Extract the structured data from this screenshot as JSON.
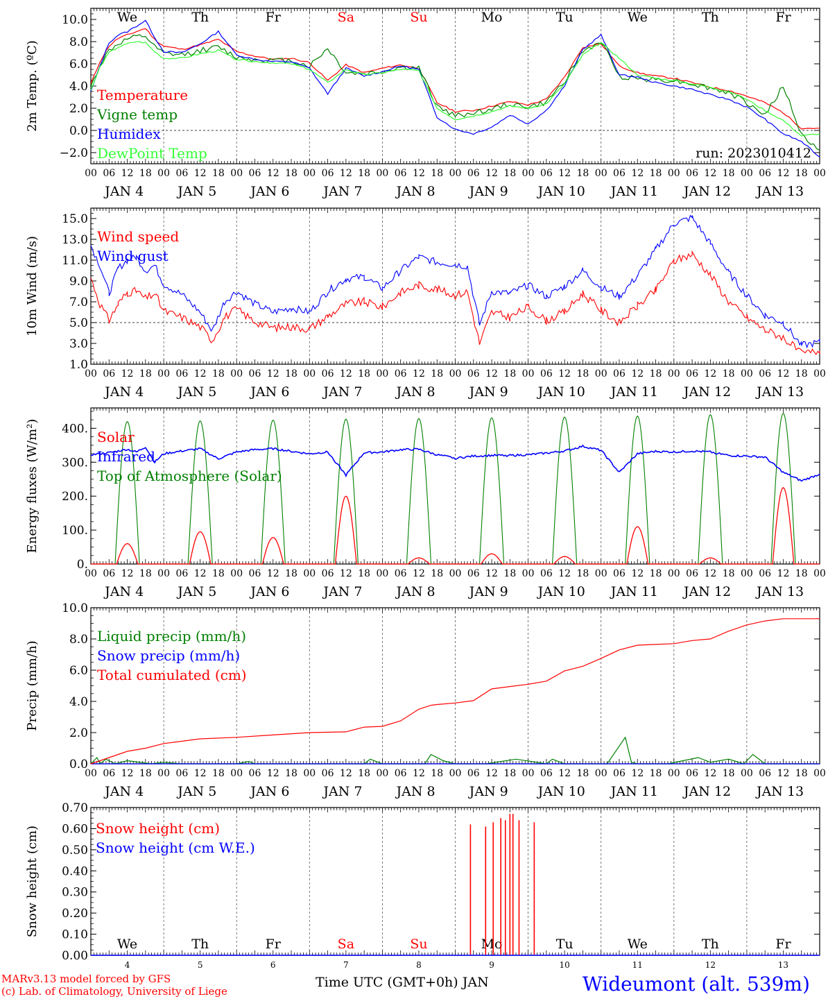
{
  "days": [
    "We",
    "Th",
    "Fr",
    "Sa",
    "Su",
    "Mo",
    "Tu",
    "We",
    "Th",
    "Fr"
  ],
  "weekend_days": [
    "Sa",
    "Su"
  ],
  "day_labels": [
    "JAN  4",
    "JAN  5",
    "JAN  6",
    "JAN  7",
    "JAN  8",
    "JAN  9",
    "JAN 10",
    "JAN 11",
    "JAN 12",
    "JAN 13"
  ],
  "hour_labels": [
    "00",
    "06",
    "12",
    "18"
  ],
  "end_hour_label": "00",
  "bottom_day_numbers": [
    "4",
    "5",
    "6",
    "7",
    "8",
    "9",
    "10",
    "11",
    "12",
    "13"
  ],
  "colors": {
    "red": "#ff0000",
    "green": "#008000",
    "blue": "#0000ff",
    "lightgreen": "#33ff33",
    "frame": "#000000",
    "grid": "#555555"
  },
  "footer": {
    "model_line1": "MARv3.13 model forced by GFS",
    "model_line2": "(c) Lab. of Climatology, University of Liege",
    "xlabel": "Time UTC (GMT+0h) JAN",
    "station": "Wideumont (alt. 539m)"
  },
  "chart_data": [
    {
      "type": "line",
      "ylabel": "2m Temp. (ºC)",
      "ylim": [
        -3,
        11
      ],
      "yticks": [
        -2,
        0,
        2,
        4,
        6,
        8,
        10
      ],
      "ytick_labels": [
        "−2.0",
        "0.0",
        "2.0",
        "4.0",
        "6.0",
        "8.0",
        "10.0"
      ],
      "reference_line": 0,
      "x_unit": "hours since JAN 4 00 UTC",
      "annotation": "run: 2023010412",
      "series": [
        {
          "name": "Temperature",
          "color": "red",
          "x": [
            0,
            3,
            6,
            9,
            12,
            15,
            18,
            21,
            24,
            30,
            36,
            42,
            48,
            54,
            60,
            66,
            72,
            78,
            84,
            90,
            96,
            102,
            108,
            114,
            120,
            126,
            132,
            138,
            144,
            150,
            156,
            162,
            168,
            174,
            180,
            186,
            192,
            198,
            204,
            210,
            216,
            222,
            228,
            234,
            240
          ],
          "y": [
            4.2,
            6.2,
            7.6,
            8.3,
            8.6,
            8.9,
            9.2,
            8.2,
            7.6,
            7.3,
            7.7,
            8.2,
            7.1,
            6.7,
            6.4,
            6.5,
            6.1,
            4.5,
            5.9,
            5.2,
            5.6,
            5.9,
            5.6,
            2.5,
            1.7,
            1.8,
            2.2,
            2.6,
            2.3,
            2.8,
            4.8,
            7.5,
            7.8,
            5.8,
            5.2,
            4.9,
            4.7,
            4.3,
            3.9,
            3.6,
            3.1,
            2.5,
            1.6,
            0.2,
            0.2
          ]
        },
        {
          "name": "Vigne temp",
          "color": "green",
          "x": [
            0,
            3,
            6,
            9,
            12,
            15,
            18,
            21,
            24,
            30,
            36,
            42,
            48,
            54,
            60,
            66,
            72,
            78,
            84,
            90,
            96,
            102,
            108,
            114,
            120,
            126,
            132,
            138,
            144,
            150,
            156,
            162,
            168,
            174,
            180,
            186,
            192,
            198,
            204,
            210,
            216,
            222,
            228,
            234,
            240
          ],
          "y": [
            3.9,
            5.9,
            7.2,
            7.8,
            8.2,
            8.4,
            8.5,
            7.5,
            6.9,
            6.8,
            7.2,
            7.5,
            6.6,
            6.4,
            6.3,
            6.3,
            5.8,
            7.4,
            5.2,
            5.1,
            5.3,
            5.7,
            5.6,
            2.2,
            1.3,
            1.6,
            1.9,
            2.4,
            2.1,
            2.5,
            4.5,
            7.1,
            8.0,
            4.9,
            4.7,
            4.6,
            4.5,
            4.2,
            3.8,
            3.4,
            2.5,
            1.4,
            4.0,
            -0.4,
            -1.8
          ]
        },
        {
          "name": "Humidex",
          "color": "blue",
          "x": [
            0,
            3,
            6,
            9,
            12,
            15,
            18,
            21,
            24,
            30,
            36,
            42,
            48,
            54,
            60,
            66,
            72,
            78,
            84,
            90,
            96,
            102,
            108,
            114,
            120,
            126,
            132,
            138,
            144,
            150,
            156,
            162,
            168,
            174,
            180,
            186,
            192,
            198,
            204,
            210,
            216,
            222,
            228,
            234,
            240
          ],
          "y": [
            3.5,
            5.8,
            7.9,
            8.6,
            8.9,
            9.4,
            9.9,
            8.4,
            7.1,
            7.0,
            7.8,
            8.9,
            6.8,
            6.4,
            6.2,
            6.2,
            5.6,
            3.3,
            5.6,
            4.9,
            5.3,
            5.8,
            5.5,
            1.2,
            0.1,
            -0.3,
            0.3,
            1.4,
            0.6,
            1.8,
            4.0,
            7.3,
            8.6,
            5.0,
            4.8,
            4.3,
            4.0,
            3.7,
            3.2,
            2.8,
            2.1,
            1.0,
            -0.3,
            -1.0,
            -2.4
          ]
        },
        {
          "name": "DewPoint Temp",
          "color": "lightgreen",
          "x": [
            0,
            3,
            6,
            9,
            12,
            15,
            18,
            21,
            24,
            30,
            36,
            42,
            48,
            54,
            60,
            66,
            72,
            78,
            84,
            90,
            96,
            102,
            108,
            114,
            120,
            126,
            132,
            138,
            144,
            150,
            156,
            162,
            168,
            174,
            180,
            186,
            192,
            198,
            204,
            210,
            216,
            222,
            228,
            234,
            240
          ],
          "y": [
            3.6,
            5.7,
            7.0,
            7.5,
            7.8,
            8.0,
            7.9,
            7.1,
            6.5,
            6.5,
            6.9,
            7.2,
            6.4,
            6.2,
            6.1,
            6.0,
            5.5,
            4.3,
            5.5,
            5.0,
            5.2,
            5.5,
            5.4,
            2.0,
            1.0,
            1.3,
            1.7,
            2.2,
            2.0,
            2.4,
            4.2,
            6.8,
            7.9,
            6.5,
            5.0,
            4.7,
            4.5,
            4.2,
            3.9,
            3.5,
            2.8,
            1.8,
            0.9,
            -0.5,
            -0.3
          ]
        }
      ]
    },
    {
      "type": "line",
      "ylabel": "10m Wind (m/s)",
      "ylim": [
        1,
        16
      ],
      "yticks": [
        1,
        3,
        5,
        7,
        9,
        11,
        13,
        15
      ],
      "ytick_labels": [
        "1.0",
        "3.0",
        "5.0",
        "7.0",
        "9.0",
        "11.0",
        "13.0",
        "15.0"
      ],
      "reference_line": 5,
      "x_unit": "hours since JAN 4 00 UTC",
      "series": [
        {
          "name": "Wind speed",
          "color": "red",
          "x": [
            0,
            3,
            6,
            9,
            12,
            15,
            18,
            21,
            24,
            30,
            36,
            40,
            44,
            48,
            54,
            60,
            66,
            72,
            78,
            84,
            90,
            96,
            102,
            108,
            114,
            120,
            124,
            128,
            132,
            138,
            144,
            150,
            156,
            162,
            168,
            174,
            180,
            186,
            192,
            198,
            204,
            210,
            216,
            222,
            228,
            234,
            240
          ],
          "y": [
            9.3,
            6.8,
            5.2,
            6.8,
            7.9,
            8.0,
            7.3,
            7.8,
            6.1,
            5.5,
            4.6,
            3.3,
            5.5,
            6.3,
            5.1,
            4.5,
            4.6,
            4.4,
            5.6,
            6.8,
            7.0,
            6.5,
            7.9,
            8.6,
            8.2,
            7.6,
            8.0,
            3.0,
            6.0,
            5.5,
            6.5,
            5.2,
            6.0,
            7.8,
            6.2,
            5.0,
            6.6,
            8.1,
            10.9,
            11.6,
            9.6,
            7.0,
            5.5,
            4.3,
            3.6,
            2.0,
            2.3
          ]
        },
        {
          "name": "Wind gust",
          "color": "blue",
          "x": [
            0,
            3,
            6,
            9,
            12,
            15,
            18,
            21,
            24,
            30,
            36,
            40,
            44,
            48,
            54,
            60,
            66,
            72,
            78,
            84,
            90,
            96,
            102,
            108,
            114,
            120,
            124,
            128,
            132,
            138,
            144,
            150,
            156,
            162,
            168,
            174,
            180,
            186,
            192,
            198,
            204,
            210,
            216,
            222,
            228,
            234,
            240
          ],
          "y": [
            12.4,
            10.5,
            7.8,
            10.2,
            11.0,
            11.3,
            10.0,
            10.5,
            8.7,
            7.7,
            6.0,
            4.2,
            7.0,
            8.0,
            6.8,
            6.0,
            6.4,
            6.0,
            8.0,
            9.2,
            9.4,
            8.3,
            10.0,
            11.3,
            10.8,
            10.6,
            10.4,
            4.8,
            8.0,
            7.8,
            8.6,
            7.5,
            8.5,
            10.0,
            8.4,
            7.5,
            9.5,
            12.0,
            14.5,
            15.1,
            12.6,
            9.8,
            7.6,
            5.7,
            5.0,
            2.8,
            3.1
          ]
        }
      ]
    },
    {
      "type": "line",
      "ylabel": "Energy fluxes (W/m²)",
      "ylim": [
        0,
        460
      ],
      "yticks": [
        0,
        100,
        200,
        300,
        400
      ],
      "ytick_labels": [
        "0.",
        "100.",
        "200.",
        "300.",
        "400."
      ],
      "x_unit": "hours since JAN 4 00 UTC",
      "series": [
        {
          "name": "Solar",
          "color": "red",
          "daily_peaks": [
            60,
            95,
            78,
            200,
            18,
            30,
            22,
            110,
            18,
            225
          ],
          "peak_hour": 12,
          "half_width_hours": 3.5
        },
        {
          "name": "Infrared",
          "color": "blue",
          "x": [
            0,
            6,
            12,
            15,
            18,
            21,
            24,
            30,
            36,
            42,
            48,
            54,
            60,
            66,
            72,
            78,
            84,
            90,
            96,
            102,
            108,
            114,
            120,
            126,
            132,
            138,
            144,
            150,
            156,
            162,
            168,
            174,
            180,
            186,
            192,
            198,
            204,
            210,
            216,
            222,
            228,
            234,
            240
          ],
          "y": [
            322,
            328,
            338,
            330,
            345,
            300,
            325,
            333,
            340,
            310,
            330,
            337,
            340,
            332,
            325,
            330,
            262,
            328,
            330,
            337,
            338,
            322,
            312,
            318,
            320,
            320,
            322,
            327,
            333,
            347,
            335,
            270,
            325,
            332,
            330,
            333,
            330,
            320,
            318,
            315,
            270,
            245,
            265
          ]
        },
        {
          "name": "Top of Atmosphere (Solar)",
          "color": "green",
          "daily_peaks": [
            420,
            422,
            424,
            427,
            429,
            431,
            433,
            436,
            440,
            444
          ],
          "peak_hour": 12,
          "half_width_hours": 4.0
        }
      ]
    },
    {
      "type": "line",
      "ylabel": "Precip (mm/h)",
      "ylim": [
        0,
        10
      ],
      "yticks": [
        0,
        2,
        4,
        6,
        8,
        10
      ],
      "ytick_labels": [
        "0.0",
        "2.0",
        "4.0",
        "6.0",
        "8.0",
        "10.0"
      ],
      "x_unit": "hours since JAN 4 00 UTC",
      "series": [
        {
          "name": "Liquid precip (mm/h)",
          "color": "green",
          "x": [
            0,
            2,
            3,
            5,
            8,
            12,
            20,
            24,
            30,
            48,
            52,
            54,
            72,
            90,
            92,
            96,
            110,
            112,
            116,
            120,
            130,
            140,
            150,
            152,
            156,
            160,
            170,
            176,
            178,
            180,
            190,
            200,
            204,
            210,
            215,
            218,
            222,
            240
          ],
          "y": [
            0.0,
            0.4,
            0.0,
            0.3,
            0.0,
            0.2,
            0.0,
            0.1,
            0.0,
            0.0,
            0.15,
            0.0,
            0.0,
            0.0,
            0.3,
            0.0,
            0.0,
            0.6,
            0.2,
            0.0,
            0.0,
            0.3,
            0.0,
            0.3,
            0.0,
            0.0,
            0.0,
            1.7,
            0.1,
            0.0,
            0.0,
            0.4,
            0.1,
            0.3,
            0.0,
            0.6,
            0.0,
            0.0
          ]
        },
        {
          "name": "Snow precip (mm/h)",
          "color": "blue",
          "x": [
            0,
            240
          ],
          "y": [
            0,
            0
          ]
        },
        {
          "name": "Total cumulated (cm)",
          "color": "red",
          "x": [
            0,
            6,
            12,
            18,
            24,
            36,
            48,
            60,
            72,
            84,
            90,
            96,
            102,
            108,
            112,
            114,
            120,
            126,
            132,
            138,
            144,
            150,
            156,
            162,
            168,
            174,
            180,
            186,
            192,
            198,
            204,
            210,
            216,
            222,
            228,
            240
          ],
          "y": [
            0.0,
            0.4,
            0.8,
            1.0,
            1.3,
            1.6,
            1.7,
            1.85,
            2.0,
            2.05,
            2.35,
            2.4,
            2.75,
            3.5,
            3.75,
            3.8,
            3.9,
            4.05,
            4.8,
            4.95,
            5.1,
            5.3,
            5.95,
            6.25,
            6.75,
            7.3,
            7.6,
            7.65,
            7.7,
            7.9,
            8.0,
            8.5,
            8.9,
            9.15,
            9.3,
            9.3
          ]
        }
      ]
    },
    {
      "type": "line",
      "ylabel": "Snow height (cm)",
      "ylim": [
        0,
        0.7
      ],
      "yticks": [
        0,
        0.1,
        0.2,
        0.3,
        0.4,
        0.5,
        0.6,
        0.7
      ],
      "ytick_labels": [
        "0.00",
        "0.10",
        "0.20",
        "0.30",
        "0.40",
        "0.50",
        "0.60",
        "0.70"
      ],
      "x_unit": "hours since JAN 4 00 UTC",
      "series": [
        {
          "name": "Snow height (cm)",
          "color": "red",
          "spikes": {
            "x": [
              125.0,
              130.0,
              132.5,
              135.0,
              136.5,
              138.0,
              139.0,
              141.0,
              146.0
            ],
            "y": [
              0.62,
              0.61,
              0.63,
              0.65,
              0.64,
              0.67,
              0.67,
              0.64,
              0.63
            ]
          }
        },
        {
          "name": "Snow height (cm W.E.)",
          "color": "blue",
          "x": [
            0,
            240
          ],
          "y": [
            0,
            0
          ]
        }
      ]
    }
  ]
}
